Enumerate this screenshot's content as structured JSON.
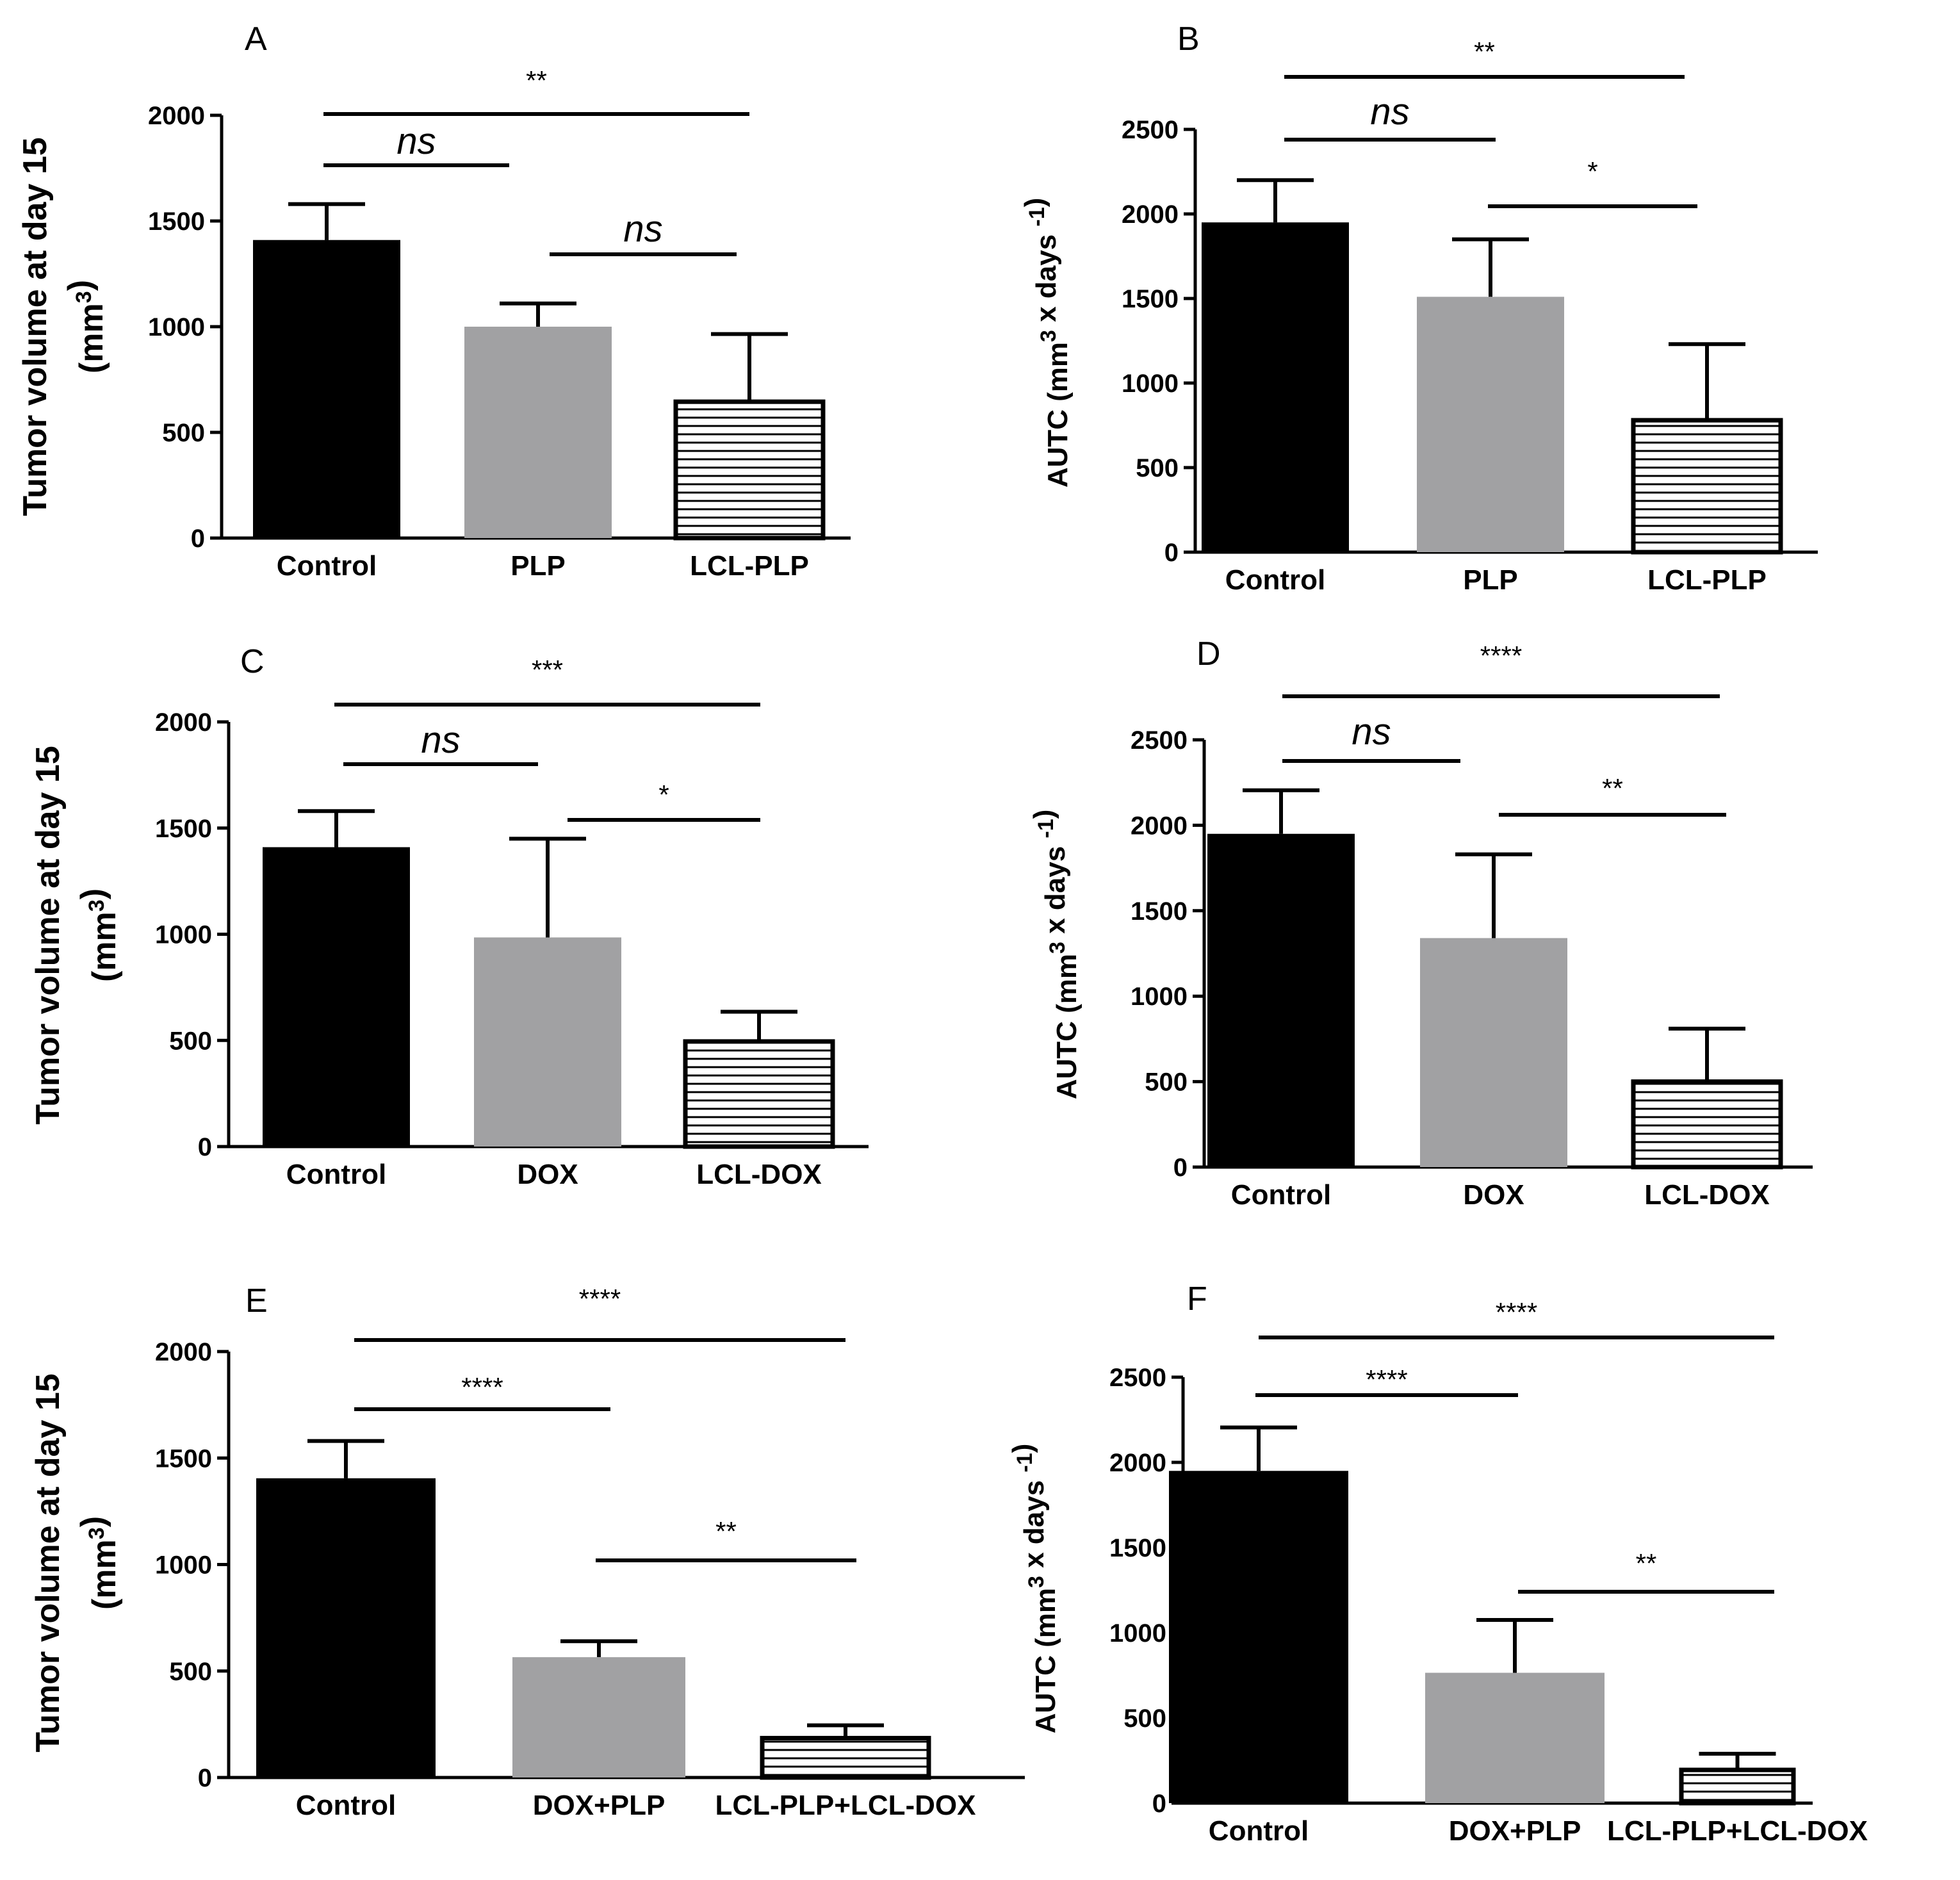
{
  "chart_data": [
    {
      "panel": "A",
      "type": "bar",
      "ylabel_lines": [
        "Tumor volume at day 15",
        "(mm3)"
      ],
      "ylim": [
        0,
        2000
      ],
      "yticks": [
        "0",
        "500",
        "1000",
        "1500",
        "2000"
      ],
      "categories": [
        "Control",
        "PLP",
        "LCL-PLP"
      ],
      "values": [
        1410,
        1000,
        645
      ],
      "errors": [
        170,
        110,
        320
      ],
      "fills": [
        "black",
        "gray",
        "hatch"
      ],
      "significance": [
        {
          "from": 0,
          "to": 2,
          "label": "**"
        },
        {
          "from": 0,
          "to": 1,
          "label": "ns"
        },
        {
          "from": 1,
          "to": 2,
          "label": "ns"
        }
      ]
    },
    {
      "panel": "B",
      "type": "bar",
      "ylabel_lines": [
        "AUTC (mm3 x days -1)"
      ],
      "ylim": [
        0,
        2500
      ],
      "yticks": [
        "0",
        "500",
        "1000",
        "1500",
        "2000",
        "2500"
      ],
      "categories": [
        "Control",
        "PLP",
        "LCL-PLP"
      ],
      "values": [
        1950,
        1510,
        780
      ],
      "errors": [
        250,
        340,
        450
      ],
      "fills": [
        "black",
        "gray",
        "hatch"
      ],
      "significance": [
        {
          "from": 0,
          "to": 2,
          "label": "**"
        },
        {
          "from": 0,
          "to": 1,
          "label": "ns"
        },
        {
          "from": 1,
          "to": 2,
          "label": "*"
        }
      ]
    },
    {
      "panel": "C",
      "type": "bar",
      "ylabel_lines": [
        "Tumor volume at day 15",
        "(mm3)"
      ],
      "ylim": [
        0,
        2000
      ],
      "yticks": [
        "0",
        "500",
        "1000",
        "1500",
        "2000"
      ],
      "categories": [
        "Control",
        "DOX",
        "LCL-DOX"
      ],
      "values": [
        1410,
        985,
        495
      ],
      "errors": [
        170,
        465,
        140
      ],
      "fills": [
        "black",
        "gray",
        "hatch"
      ],
      "significance": [
        {
          "from": 0,
          "to": 2,
          "label": "***"
        },
        {
          "from": 0,
          "to": 1,
          "label": "ns"
        },
        {
          "from": 1,
          "to": 2,
          "label": "*"
        }
      ]
    },
    {
      "panel": "D",
      "type": "bar",
      "ylabel_lines": [
        "AUTC (mm3 x days -1)"
      ],
      "ylim": [
        0,
        2500
      ],
      "yticks": [
        "0",
        "500",
        "1000",
        "1500",
        "2000",
        "2500"
      ],
      "categories": [
        "Control",
        "DOX",
        "LCL-DOX"
      ],
      "values": [
        1950,
        1340,
        500
      ],
      "errors": [
        255,
        490,
        310
      ],
      "fills": [
        "black",
        "gray",
        "hatch"
      ],
      "significance": [
        {
          "from": 0,
          "to": 2,
          "label": "****"
        },
        {
          "from": 0,
          "to": 1,
          "label": "ns"
        },
        {
          "from": 1,
          "to": 2,
          "label": "**"
        }
      ]
    },
    {
      "panel": "E",
      "type": "bar",
      "ylabel_lines": [
        "Tumor volume at day 15",
        "(mm3)"
      ],
      "ylim": [
        0,
        2000
      ],
      "yticks": [
        "0",
        "500",
        "1000",
        "1500",
        "2000"
      ],
      "categories": [
        "Control",
        "DOX+PLP",
        "LCL-PLP+LCL-DOX"
      ],
      "values": [
        1405,
        565,
        185
      ],
      "errors": [
        175,
        75,
        60
      ],
      "fills": [
        "black",
        "gray",
        "hatch"
      ],
      "significance": [
        {
          "from": 0,
          "to": 2,
          "label": "****"
        },
        {
          "from": 0,
          "to": 1,
          "label": "****"
        },
        {
          "from": 1,
          "to": 2,
          "label": "**"
        }
      ]
    },
    {
      "panel": "F",
      "type": "bar",
      "ylabel_lines": [
        "AUTC (mm3 x days -1)"
      ],
      "ylim": [
        0,
        2500
      ],
      "yticks": [
        "0",
        "500",
        "1000",
        "1500",
        "2000",
        "2500"
      ],
      "categories": [
        "Control",
        "DOX+PLP",
        "LCL-PLP+LCL-DOX"
      ],
      "values": [
        1950,
        765,
        195
      ],
      "errors": [
        255,
        310,
        95
      ],
      "fills": [
        "black",
        "gray",
        "hatch"
      ],
      "significance": [
        {
          "from": 0,
          "to": 2,
          "label": "****"
        },
        {
          "from": 0,
          "to": 1,
          "label": "****"
        },
        {
          "from": 1,
          "to": 2,
          "label": "**"
        }
      ]
    }
  ]
}
